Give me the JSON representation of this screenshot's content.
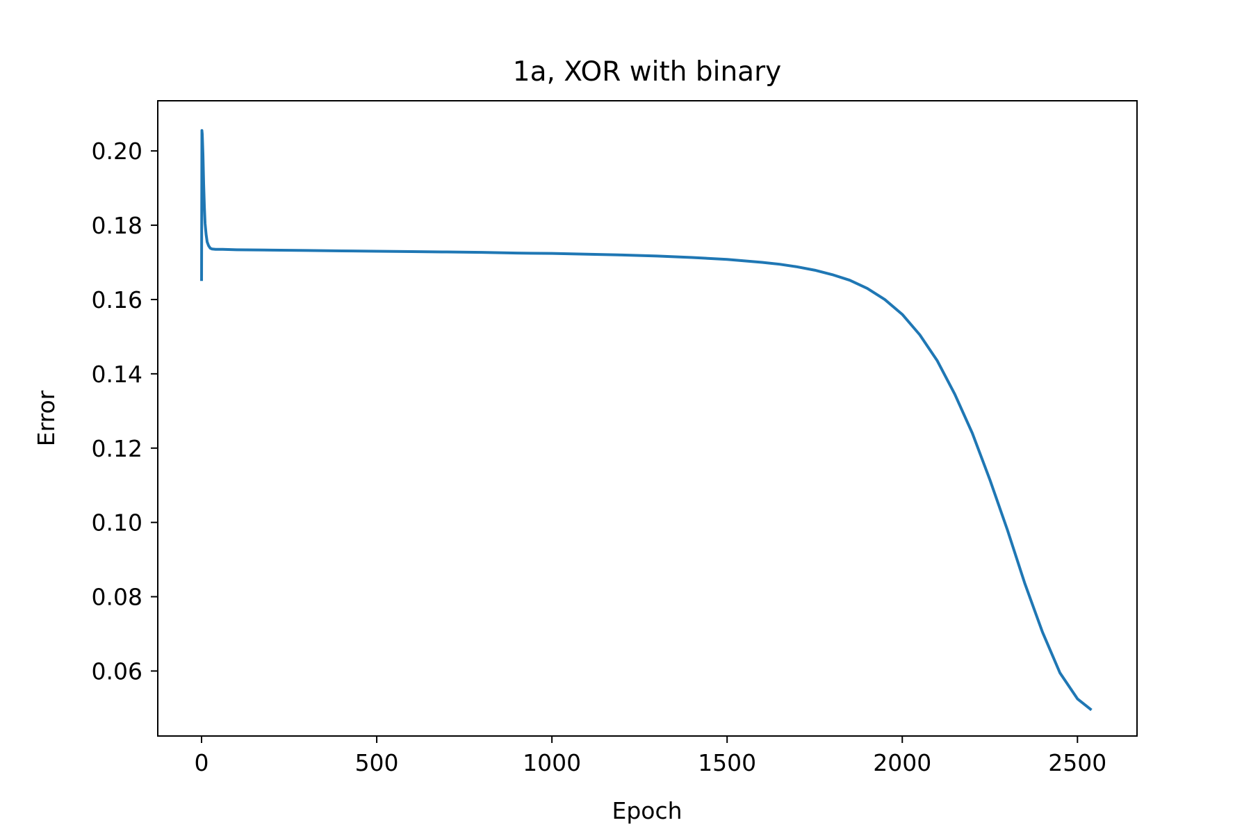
{
  "chart_data": {
    "type": "line",
    "title": "1a, XOR with binary",
    "xlabel": "Epoch",
    "ylabel": "Error",
    "xlim": [
      -125,
      2670
    ],
    "ylim": [
      0.0425,
      0.2135
    ],
    "xticks": [
      0,
      500,
      1000,
      1500,
      2000,
      2500
    ],
    "xtick_labels": [
      "0",
      "500",
      "1000",
      "1500",
      "2000",
      "2500"
    ],
    "yticks": [
      0.06,
      0.08,
      0.1,
      0.12,
      0.14,
      0.16,
      0.18,
      0.2
    ],
    "ytick_labels": [
      "0.06",
      "0.08",
      "0.10",
      "0.12",
      "0.14",
      "0.16",
      "0.18",
      "0.20"
    ],
    "grid": false,
    "colors": {
      "line": "#1f77b4",
      "axes": "#000000",
      "background": "#ffffff"
    },
    "series": [
      {
        "x": [
          0,
          1,
          2,
          4,
          6,
          8,
          10,
          13,
          16,
          20,
          25,
          30,
          40,
          60,
          100,
          200,
          300,
          400,
          500,
          600,
          700,
          800,
          900,
          1000,
          1100,
          1200,
          1300,
          1400,
          1500,
          1550,
          1600,
          1650,
          1700,
          1750,
          1800,
          1850,
          1900,
          1950,
          2000,
          2050,
          2100,
          2150,
          2200,
          2250,
          2300,
          2350,
          2400,
          2450,
          2500,
          2540
        ],
        "y": [
          0.165,
          0.2055,
          0.2045,
          0.199,
          0.191,
          0.185,
          0.1805,
          0.1775,
          0.1755,
          0.1745,
          0.1738,
          0.1736,
          0.1735,
          0.1735,
          0.1734,
          0.1733,
          0.1732,
          0.1731,
          0.173,
          0.1729,
          0.1728,
          0.1727,
          0.1725,
          0.1724,
          0.1722,
          0.172,
          0.1717,
          0.1713,
          0.1708,
          0.1704,
          0.17,
          0.1695,
          0.1688,
          0.1679,
          0.1667,
          0.1652,
          0.163,
          0.16,
          0.156,
          0.1505,
          0.1435,
          0.1345,
          0.124,
          0.1115,
          0.098,
          0.0835,
          0.0705,
          0.0595,
          0.0525,
          0.0495
        ]
      }
    ]
  }
}
